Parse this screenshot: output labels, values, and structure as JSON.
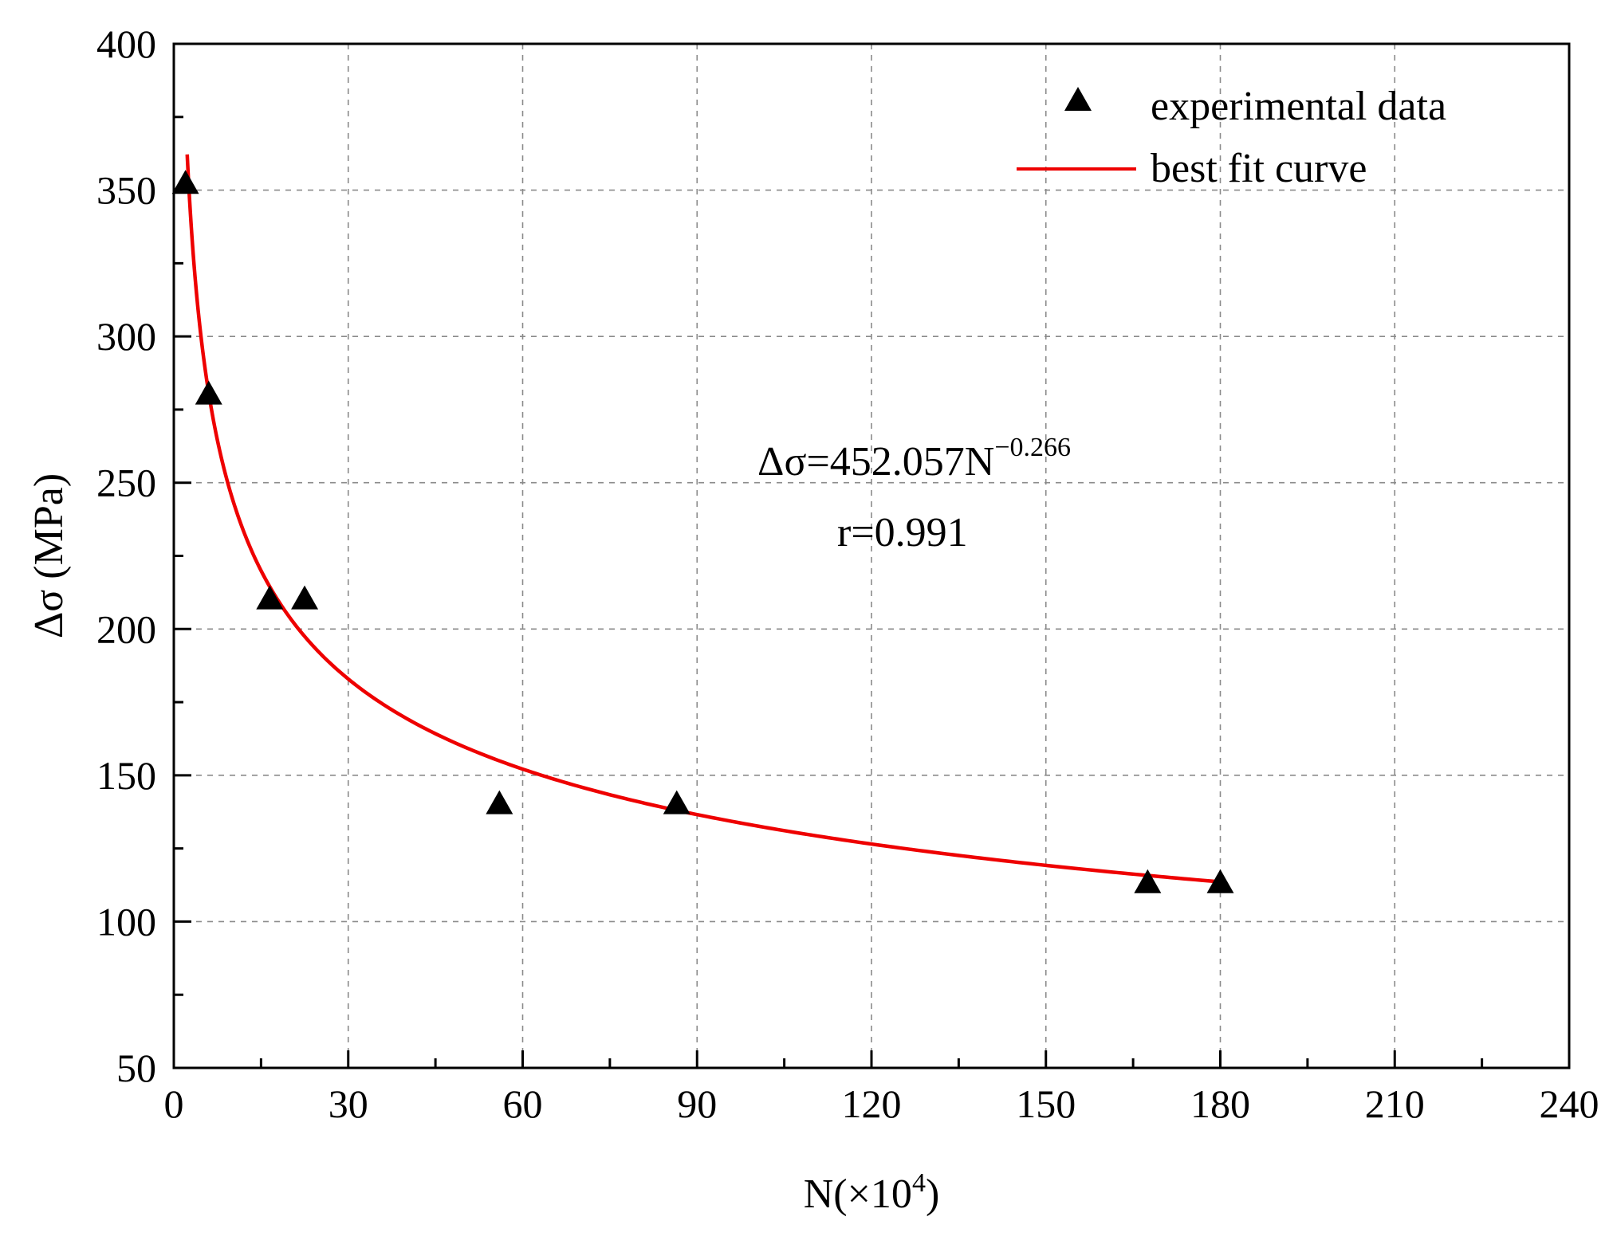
{
  "chart_data": {
    "type": "scatter",
    "title": "",
    "xlabel_main": "N(×10",
    "xlabel_sup": "4",
    "xlabel_close": ")",
    "ylabel": "Δσ (MPa)",
    "xlim": [
      0,
      240
    ],
    "ylim": [
      50,
      400
    ],
    "xticks": [
      "0",
      "30",
      "60",
      "90",
      "120",
      "150",
      "180",
      "210",
      "240"
    ],
    "yticks": [
      "50",
      "100",
      "150",
      "200",
      "250",
      "300",
      "350",
      "400"
    ],
    "grid": true,
    "legend_position": "top-right",
    "series": [
      {
        "name": "experimental data",
        "kind": "scatter",
        "marker": "triangle",
        "color": "#000000",
        "points": [
          {
            "x": 2,
            "y": 352
          },
          {
            "x": 6,
            "y": 280
          },
          {
            "x": 16.5,
            "y": 210
          },
          {
            "x": 22.5,
            "y": 210
          },
          {
            "x": 56,
            "y": 140
          },
          {
            "x": 86.5,
            "y": 140
          },
          {
            "x": 167.5,
            "y": 113
          },
          {
            "x": 180,
            "y": 113
          }
        ]
      },
      {
        "name": "best fit curve",
        "kind": "line",
        "color": "#ee0000",
        "coefficient": 452.057,
        "exponent": -0.266,
        "x_start": 2.3,
        "x_end": 180
      }
    ],
    "annotation": {
      "equation_main": "Δσ=452.057N",
      "equation_exp": "−0.266",
      "r_text": "r=0.991"
    }
  }
}
